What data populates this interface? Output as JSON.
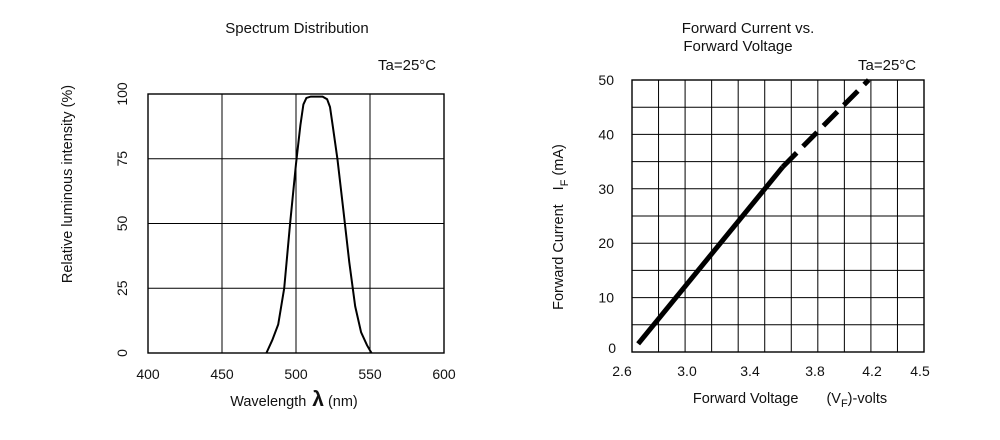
{
  "chart_data": [
    {
      "type": "line",
      "title": "Spectrum Distribution",
      "annotation": "Ta=25°C",
      "xlabel": "Wavelength",
      "xlabel_symbol": "λ",
      "xlabel_unit": "(nm)",
      "ylabel": "Relative luminous intensity  (%)",
      "xlim": [
        400,
        600
      ],
      "ylim": [
        0,
        100
      ],
      "x_ticks": [
        "400",
        "450",
        "500",
        "550",
        "600"
      ],
      "y_ticks": [
        "0",
        "25",
        "50",
        "75",
        "100"
      ],
      "grid": true,
      "series": [
        {
          "x": [
            480,
            484,
            488,
            492,
            496,
            500,
            503,
            505,
            507,
            510,
            514,
            518,
            521,
            523,
            525,
            528,
            532,
            536,
            540,
            544,
            548,
            551
          ],
          "y": [
            0,
            5,
            11,
            25,
            50,
            73,
            88,
            96,
            98.5,
            99,
            99,
            99,
            98,
            95,
            87,
            75,
            55,
            35,
            18,
            8,
            3,
            0
          ]
        }
      ]
    },
    {
      "type": "line",
      "title_line1": "Forward Current vs.",
      "title_line2": "Forward Voltage",
      "annotation": "Ta=25°C",
      "xlabel": "Forward Voltage",
      "xlabel_unit_pre": "(V",
      "xlabel_unit_sub": "F",
      "xlabel_unit_post": ")-volts",
      "ylabel": "Forward Current",
      "ylabel_symbol": "I",
      "ylabel_sub": "F",
      "ylabel_unit": "(mA)",
      "xlim": [
        2.6,
        4.5
      ],
      "ylim": [
        0,
        50
      ],
      "x_ticks": [
        "2.6",
        "3.0",
        "3.4",
        "3.8",
        "4.2",
        "4.5"
      ],
      "y_ticks": [
        "0",
        "10",
        "20",
        "30",
        "40",
        "50"
      ],
      "grid": true,
      "series": [
        {
          "style": "solid",
          "x": [
            2.64,
            3.58
          ],
          "y": [
            1.5,
            34
          ]
        },
        {
          "style": "dashed",
          "x": [
            3.58,
            4.14
          ],
          "y": [
            34,
            50
          ]
        }
      ]
    }
  ]
}
